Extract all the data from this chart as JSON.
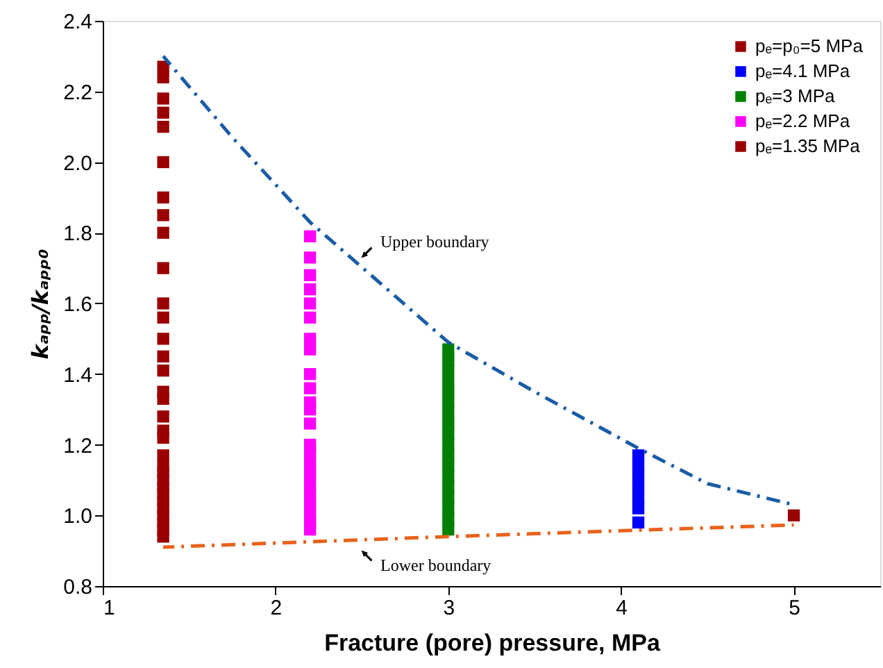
{
  "chart_data": {
    "type": "scatter",
    "xlabel": "Fracture (pore) pressure, MPa",
    "ylabel": "kₐₚₚ/kₐₚₚ₀",
    "xlim": [
      1,
      5.5
    ],
    "xticks": [
      1,
      2,
      3,
      4,
      5
    ],
    "ylim": [
      0.8,
      2.4
    ],
    "yticks": [
      0.8,
      {
        "value": 1,
        "label": "1.0"
      },
      1.2,
      1.4,
      1.6,
      1.8,
      {
        "value": 2,
        "label": "2.0"
      },
      2.2,
      2.4
    ],
    "grid": false,
    "legend": "top right",
    "marker": "square",
    "series": [
      {
        "name": "pₑ=p₀=5 MPa",
        "color": "#990000",
        "x": [
          5
        ],
        "values": [
          1.0
        ]
      },
      {
        "name": "pₑ=4.1 MPa",
        "color": "#0000ff",
        "x": [
          4.1,
          4.1,
          4.1,
          4.1,
          4.1,
          4.1,
          4.1
        ],
        "values": [
          1.17,
          1.14,
          1.11,
          1.08,
          1.05,
          1.02,
          0.98
        ]
      },
      {
        "name": "pₑ=3 MPa",
        "color": "#008000",
        "x": [
          3,
          3,
          3,
          3,
          3,
          3,
          3,
          3,
          3,
          3,
          3,
          3,
          3,
          3,
          3,
          3,
          3,
          3
        ],
        "values": [
          1.47,
          1.44,
          1.41,
          1.38,
          1.35,
          1.32,
          1.29,
          1.26,
          1.23,
          1.2,
          1.17,
          1.14,
          1.11,
          1.08,
          1.05,
          1.02,
          0.99,
          0.96
        ]
      },
      {
        "name": "pₑ=2.2 MPa",
        "color": "#ff00ff",
        "x": [
          2.2,
          2.2,
          2.2,
          2.2,
          2.2,
          2.2,
          2.2,
          2.2,
          2.2,
          2.2,
          2.2,
          2.2,
          2.2,
          2.2,
          2.2,
          2.2,
          2.2,
          2.2,
          2.2,
          2.2,
          2.2,
          2.2,
          2.2
        ],
        "values": [
          1.79,
          1.73,
          1.68,
          1.64,
          1.6,
          1.56,
          1.5,
          1.47,
          1.4,
          1.36,
          1.32,
          1.3,
          1.26,
          1.2,
          1.18,
          1.15,
          1.12,
          1.09,
          1.06,
          1.03,
          1.0,
          0.98,
          0.96
        ]
      },
      {
        "name": "pₑ=1.35 MPa",
        "color": "#990000",
        "x": [
          1.35,
          1.35,
          1.35,
          1.35,
          1.35,
          1.35,
          1.35,
          1.35,
          1.35,
          1.35,
          1.35,
          1.35,
          1.35,
          1.35,
          1.35,
          1.35,
          1.35,
          1.35,
          1.35,
          1.35,
          1.35,
          1.35,
          1.35,
          1.35,
          1.35,
          1.35,
          1.35,
          1.35,
          1.35,
          1.35,
          1.35,
          1.35
        ],
        "values": [
          2.27,
          2.24,
          2.18,
          2.14,
          2.1,
          2.0,
          1.9,
          1.85,
          1.8,
          1.7,
          1.6,
          1.56,
          1.5,
          1.45,
          1.41,
          1.35,
          1.33,
          1.28,
          1.24,
          1.22,
          1.17,
          1.14,
          1.12,
          1.1,
          1.08,
          1.06,
          1.04,
          1.02,
          1.0,
          0.98,
          0.96,
          0.94
        ]
      },
      {
        "type": "line",
        "color": "#1a5ca6",
        "line_style": "dashdot",
        "marker": "none",
        "x": [
          1.35,
          1.75,
          2.2,
          3,
          3.5,
          4.1,
          4.5,
          5
        ],
        "values": [
          2.3,
          2.07,
          1.83,
          1.49,
          1.35,
          1.19,
          1.09,
          1.03
        ]
      },
      {
        "type": "line",
        "color": "#e8621a",
        "line_style": "dashdot",
        "marker": "none",
        "x": [
          1.35,
          3,
          5
        ],
        "values": [
          0.91,
          0.94,
          0.973
        ]
      }
    ],
    "annotations": [
      "Upper boundary",
      "Lower boundary"
    ]
  }
}
